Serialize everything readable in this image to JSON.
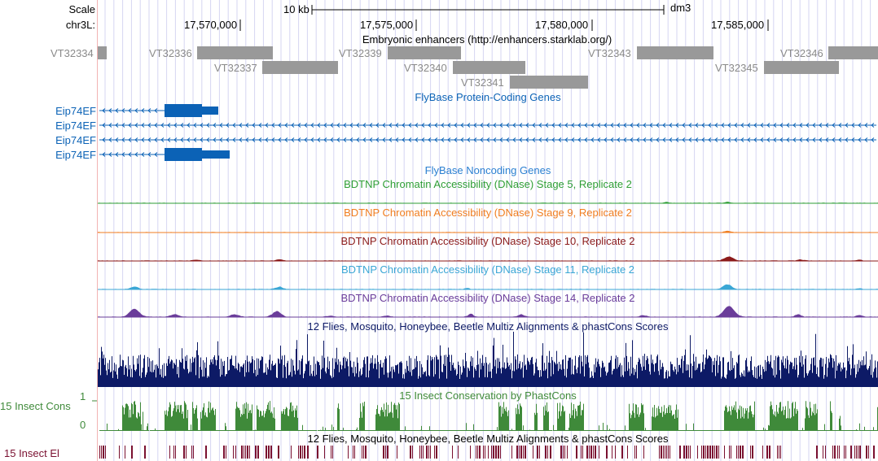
{
  "header": {
    "scale_label": "Scale",
    "scale_bar_label": "10 kb",
    "assembly": "dm3",
    "chrom_label": "chr3L:",
    "positions": [
      "17,570,000",
      "17,575,000",
      "17,580,000",
      "17,585,000"
    ]
  },
  "tracks": {
    "enhancers": {
      "title": "Embryonic enhancers (http://enhancers.starklab.org/)",
      "items": [
        "VT32334",
        "VT32336",
        "VT32337",
        "VT32339",
        "VT32340",
        "VT32341",
        "VT32343",
        "VT32345",
        "VT32346"
      ]
    },
    "protein_genes": {
      "title": "FlyBase Protein-Coding Genes",
      "gene_labels": [
        "Eip74EF",
        "Eip74EF",
        "Eip74EF",
        "Eip74EF"
      ]
    },
    "noncoding_genes": {
      "title": "FlyBase Noncoding Genes"
    },
    "dnase_stage5": {
      "title": "BDTNP Chromatin Accessibility (DNase) Stage 5, Replicate 2",
      "color": "#2e9e35"
    },
    "dnase_stage9": {
      "title": "BDTNP Chromatin Accessibility (DNase) Stage 9, Replicate 2",
      "color": "#f07d20"
    },
    "dnase_stage10": {
      "title": "BDTNP Chromatin Accessibility (DNase) Stage 10, Replicate 2",
      "color": "#8b1a1a"
    },
    "dnase_stage11": {
      "title": "BDTNP Chromatin Accessibility (DNase) Stage 11, Replicate 2",
      "color": "#3aa6d5"
    },
    "dnase_stage14": {
      "title": "BDTNP Chromatin Accessibility (DNase) Stage 14, Replicate 2",
      "color": "#6a3c9a"
    },
    "multiz": {
      "title": "12 Flies, Mosquito, Honeybee, Beetle Multiz Alignments & phastCons Scores",
      "color": "#0d1a66"
    },
    "insect_cons": {
      "title": "15 Insect Conservation by PhastCons",
      "side_label": "15 Insect Cons",
      "axis_max": "1",
      "axis_min": "0",
      "color": "#3f8a3a"
    },
    "multiz_el": {
      "title": "12 Flies, Mosquito, Honeybee, Beetle Multiz Alignments & phastCons Scores",
      "side_label": "15 Insect El",
      "color": "#7a1030"
    }
  }
}
